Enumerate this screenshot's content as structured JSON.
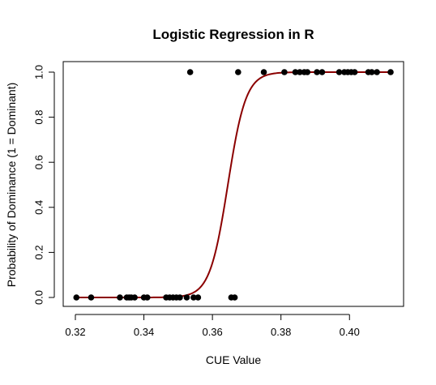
{
  "chart_data": {
    "type": "scatter",
    "title": "Logistic Regression in R",
    "xlabel": "CUE Value",
    "ylabel": "Probability of Dominance (1 = Dominant)",
    "xlim": [
      0.32,
      0.412
    ],
    "ylim": [
      0.0,
      1.0
    ],
    "x_ticks": [
      "0.32",
      "0.34",
      "0.36",
      "0.38",
      "0.40"
    ],
    "y_ticks": [
      "0.0",
      "0.2",
      "0.4",
      "0.6",
      "0.8",
      "1.0"
    ],
    "grid": false,
    "legend": "none",
    "points": [
      {
        "x": 0.3203,
        "y": 0
      },
      {
        "x": 0.3246,
        "y": 0
      },
      {
        "x": 0.333,
        "y": 0
      },
      {
        "x": 0.335,
        "y": 0
      },
      {
        "x": 0.3357,
        "y": 0
      },
      {
        "x": 0.3363,
        "y": 0
      },
      {
        "x": 0.3373,
        "y": 0
      },
      {
        "x": 0.34,
        "y": 0
      },
      {
        "x": 0.341,
        "y": 0
      },
      {
        "x": 0.3465,
        "y": 0
      },
      {
        "x": 0.3475,
        "y": 0
      },
      {
        "x": 0.3485,
        "y": 0
      },
      {
        "x": 0.3495,
        "y": 0
      },
      {
        "x": 0.3505,
        "y": 0
      },
      {
        "x": 0.3525,
        "y": 0
      },
      {
        "x": 0.3545,
        "y": 0
      },
      {
        "x": 0.3558,
        "y": 0
      },
      {
        "x": 0.3655,
        "y": 0
      },
      {
        "x": 0.3665,
        "y": 0
      },
      {
        "x": 0.3535,
        "y": 1
      },
      {
        "x": 0.3675,
        "y": 1
      },
      {
        "x": 0.375,
        "y": 1
      },
      {
        "x": 0.381,
        "y": 1
      },
      {
        "x": 0.3842,
        "y": 1
      },
      {
        "x": 0.3855,
        "y": 1
      },
      {
        "x": 0.3868,
        "y": 1
      },
      {
        "x": 0.3877,
        "y": 1
      },
      {
        "x": 0.3905,
        "y": 1
      },
      {
        "x": 0.392,
        "y": 1
      },
      {
        "x": 0.397,
        "y": 1
      },
      {
        "x": 0.3985,
        "y": 1
      },
      {
        "x": 0.3995,
        "y": 1
      },
      {
        "x": 0.4005,
        "y": 1
      },
      {
        "x": 0.4015,
        "y": 1
      },
      {
        "x": 0.4055,
        "y": 1
      },
      {
        "x": 0.4065,
        "y": 1
      },
      {
        "x": 0.408,
        "y": 1
      },
      {
        "x": 0.412,
        "y": 1
      }
    ],
    "fitted_curve": {
      "type": "logistic",
      "midpoint": 0.3645,
      "slope": 380,
      "color": "#8b0000"
    },
    "point_color": "#000000"
  }
}
